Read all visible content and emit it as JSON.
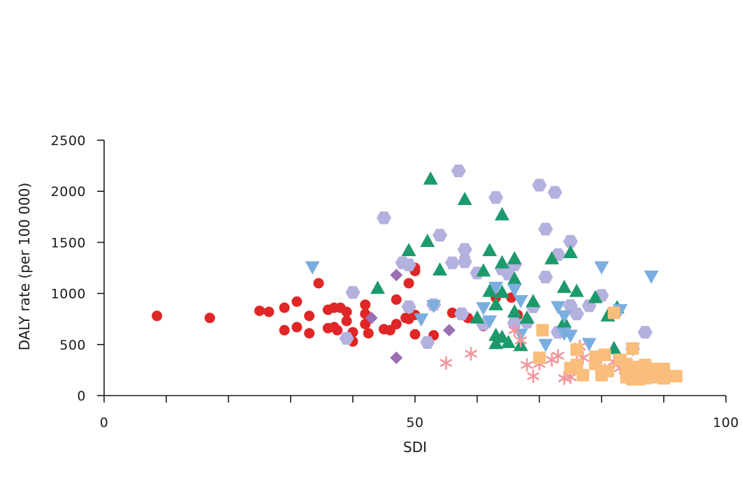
{
  "chart_data": {
    "type": "scatter",
    "xlabel": "SDI",
    "ylabel": "DALY rate (per 100 000)",
    "xlim": [
      0,
      100
    ],
    "ylim": [
      0,
      2500
    ],
    "x_ticks": [
      0,
      10,
      20,
      30,
      40,
      50,
      60,
      70,
      80,
      90,
      100
    ],
    "x_tick_labels": [
      "0",
      "",
      "",
      "",
      "",
      "50",
      "",
      "",
      "",
      "",
      "100"
    ],
    "y_ticks": [
      0,
      500,
      1000,
      1500,
      2000,
      2500
    ],
    "y_tick_labels": [
      "0",
      "500",
      "1000",
      "1500",
      "2000",
      "2500"
    ],
    "grid": false,
    "legend": "none",
    "series": [
      {
        "marker": "circle",
        "color": "#e02626",
        "points": [
          [
            8.5,
            780
          ],
          [
            17,
            760
          ],
          [
            25,
            830
          ],
          [
            26.5,
            820
          ],
          [
            29,
            860
          ],
          [
            31,
            920
          ],
          [
            33,
            610
          ],
          [
            34.5,
            1100
          ],
          [
            29,
            640
          ],
          [
            31,
            670
          ],
          [
            33,
            780
          ],
          [
            36,
            840
          ],
          [
            37,
            860
          ],
          [
            38,
            860
          ],
          [
            36,
            660
          ],
          [
            37,
            670
          ],
          [
            37.5,
            640
          ],
          [
            39,
            820
          ],
          [
            39,
            730
          ],
          [
            40,
            620
          ],
          [
            40,
            530
          ],
          [
            42,
            890
          ],
          [
            42,
            800
          ],
          [
            42,
            700
          ],
          [
            42.5,
            610
          ],
          [
            45,
            650
          ],
          [
            46,
            640
          ],
          [
            47,
            700
          ],
          [
            47,
            940
          ],
          [
            48.5,
            760
          ],
          [
            49,
            1100
          ],
          [
            49,
            750
          ],
          [
            50,
            1250
          ],
          [
            50,
            1220
          ],
          [
            50,
            790
          ],
          [
            50,
            600
          ],
          [
            53,
            590
          ],
          [
            56,
            810
          ],
          [
            58,
            1340
          ],
          [
            58.5,
            760
          ],
          [
            61,
            680
          ],
          [
            63,
            960
          ],
          [
            65.5,
            960
          ],
          [
            66,
            740
          ],
          [
            66.5,
            790
          ]
        ]
      },
      {
        "marker": "hexagon",
        "color": "#b3b1de",
        "points": [
          [
            39,
            560
          ],
          [
            40,
            1010
          ],
          [
            45,
            1740
          ],
          [
            48,
            1300
          ],
          [
            49,
            870
          ],
          [
            49,
            1280
          ],
          [
            52,
            520
          ],
          [
            53,
            890
          ],
          [
            54,
            1570
          ],
          [
            56,
            1300
          ],
          [
            57,
            2200
          ],
          [
            57.5,
            800
          ],
          [
            58,
            1310
          ],
          [
            58,
            1430
          ],
          [
            60,
            1200
          ],
          [
            61,
            700
          ],
          [
            63,
            1940
          ],
          [
            64,
            1240
          ],
          [
            65,
            1190
          ],
          [
            66,
            1280
          ],
          [
            66,
            710
          ],
          [
            68,
            720
          ],
          [
            69,
            870
          ],
          [
            70,
            2060
          ],
          [
            71,
            1630
          ],
          [
            71,
            1160
          ],
          [
            72.5,
            1990
          ],
          [
            73,
            1380
          ],
          [
            73,
            620
          ],
          [
            75,
            880
          ],
          [
            75,
            1510
          ],
          [
            76,
            800
          ],
          [
            78,
            880
          ],
          [
            80,
            980
          ],
          [
            85,
            460
          ],
          [
            87,
            620
          ]
        ]
      },
      {
        "marker": "triangle-up",
        "color": "#1c9a6c",
        "points": [
          [
            44,
            1050
          ],
          [
            49,
            1420
          ],
          [
            52,
            1510
          ],
          [
            52.5,
            2120
          ],
          [
            54,
            1230
          ],
          [
            58,
            1920
          ],
          [
            60,
            760
          ],
          [
            61,
            1220
          ],
          [
            62,
            1020
          ],
          [
            62,
            1420
          ],
          [
            63,
            890
          ],
          [
            63,
            590
          ],
          [
            63,
            510
          ],
          [
            64,
            1770
          ],
          [
            64,
            1300
          ],
          [
            64,
            1010
          ],
          [
            64,
            570
          ],
          [
            65,
            520
          ],
          [
            66,
            1340
          ],
          [
            66,
            1140
          ],
          [
            66,
            820
          ],
          [
            67,
            490
          ],
          [
            68,
            760
          ],
          [
            69,
            920
          ],
          [
            72,
            1340
          ],
          [
            74,
            1060
          ],
          [
            74,
            720
          ],
          [
            75,
            1400
          ],
          [
            76,
            1020
          ],
          [
            79,
            960
          ],
          [
            81,
            780
          ],
          [
            82,
            460
          ],
          [
            82.5,
            860
          ]
        ]
      },
      {
        "marker": "triangle-down",
        "color": "#7aaee0",
        "points": [
          [
            33.5,
            1260
          ],
          [
            51,
            750
          ],
          [
            53,
            880
          ],
          [
            61,
            860
          ],
          [
            62,
            730
          ],
          [
            63,
            1060
          ],
          [
            66,
            1040
          ],
          [
            67,
            600
          ],
          [
            67,
            930
          ],
          [
            71,
            500
          ],
          [
            73,
            870
          ],
          [
            74,
            780
          ],
          [
            74,
            610
          ],
          [
            75,
            590
          ],
          [
            78,
            510
          ],
          [
            80,
            1260
          ],
          [
            83,
            840
          ],
          [
            85,
            460
          ],
          [
            88,
            1170
          ]
        ]
      },
      {
        "marker": "diamond",
        "color": "#9b6fb4",
        "points": [
          [
            43,
            760
          ],
          [
            47,
            1180
          ],
          [
            47,
            370
          ],
          [
            55.5,
            640
          ]
        ]
      },
      {
        "marker": "asterisk",
        "color": "#f2959c",
        "points": [
          [
            55,
            320
          ],
          [
            59,
            410
          ],
          [
            66,
            640
          ],
          [
            67,
            540
          ],
          [
            68,
            300
          ],
          [
            69,
            190
          ],
          [
            70,
            310
          ],
          [
            72,
            350
          ],
          [
            73,
            390
          ],
          [
            74,
            170
          ],
          [
            75,
            180
          ],
          [
            76,
            320
          ],
          [
            76.5,
            480
          ],
          [
            77,
            370
          ],
          [
            80,
            380
          ],
          [
            80.5,
            250
          ],
          [
            82,
            330
          ],
          [
            83,
            270
          ],
          [
            84,
            180
          ],
          [
            86,
            230
          ]
        ]
      },
      {
        "marker": "square",
        "color": "#f9bd7c",
        "points": [
          [
            70,
            370
          ],
          [
            70.5,
            640
          ],
          [
            75,
            270
          ],
          [
            76,
            450
          ],
          [
            76,
            300
          ],
          [
            77,
            200
          ],
          [
            79,
            380
          ],
          [
            79,
            310
          ],
          [
            80,
            200
          ],
          [
            80.5,
            400
          ],
          [
            81,
            240
          ],
          [
            82,
            810
          ],
          [
            83,
            350
          ],
          [
            84,
            310
          ],
          [
            84,
            250
          ],
          [
            84,
            180
          ],
          [
            85,
            460
          ],
          [
            85,
            200
          ],
          [
            85,
            160
          ],
          [
            86,
            280
          ],
          [
            86,
            210
          ],
          [
            86,
            160
          ],
          [
            87,
            300
          ],
          [
            87,
            240
          ],
          [
            87,
            170
          ],
          [
            88,
            260
          ],
          [
            88,
            180
          ],
          [
            89,
            230
          ],
          [
            90,
            170
          ],
          [
            90,
            260
          ],
          [
            92,
            190
          ]
        ]
      }
    ]
  }
}
